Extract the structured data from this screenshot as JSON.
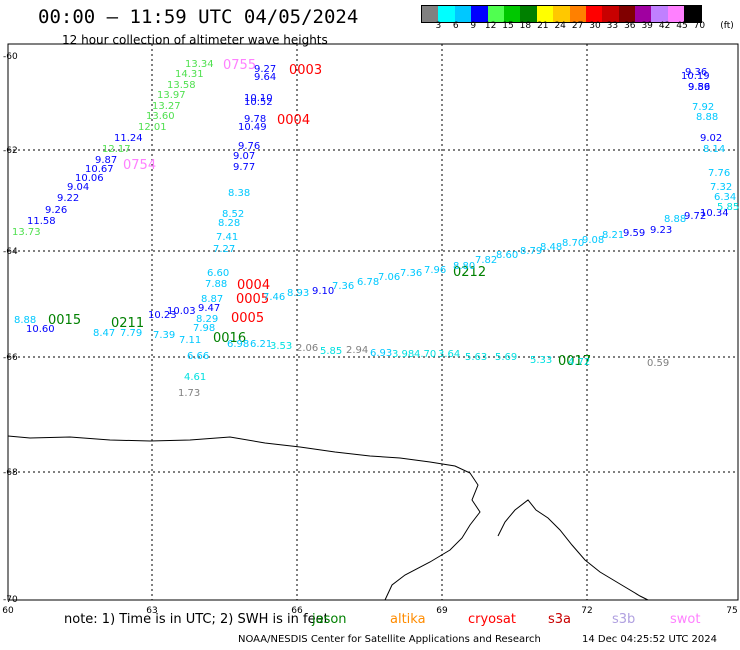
{
  "header": {
    "title": "00:00 – 11:59 UTC 04/05/2024",
    "subtitle": "12 hour collection of altimeter wave heights"
  },
  "legend": {
    "unit": "(ft)",
    "colors": [
      "#808080",
      "#00ffff",
      "#00c8ff",
      "#0000ff",
      "#50ff50",
      "#00c800",
      "#008000",
      "#ffff00",
      "#ffc800",
      "#ff8000",
      "#ff0000",
      "#c80000",
      "#800000",
      "#a000a0",
      "#c080ff",
      "#ff80ff",
      "#000000"
    ],
    "labels": [
      "3",
      "6",
      "9",
      "12",
      "15",
      "18",
      "21",
      "24",
      "27",
      "30",
      "33",
      "36",
      "39",
      "42",
      "45",
      "70"
    ]
  },
  "axes": {
    "lon_labels": [
      "60",
      "63",
      "66",
      "69",
      "72",
      "75"
    ],
    "lat_labels": [
      "-60",
      "-62",
      "-64",
      "-66",
      "-68",
      "-70"
    ]
  },
  "footer": {
    "note": "note:  1) Time is in UTC;  2) SWH is in feet",
    "sources": [
      {
        "name": "jason",
        "color": "#008000"
      },
      {
        "name": "altika",
        "color": "#ff8c00"
      },
      {
        "name": "cryosat",
        "color": "#ff0000"
      },
      {
        "name": "s3a",
        "color": "#c80000"
      },
      {
        "name": "s3b",
        "color": "#b0a0e0"
      },
      {
        "name": "swot",
        "color": "#ff80ff"
      }
    ],
    "credit": "NOAA/NESDIS Center for Satellite Applications and Research",
    "timestamp": "14 Dec 04:25:52 UTC 2024"
  },
  "map_labels": {
    "time": [
      {
        "text": "0755",
        "color": "#ff80ff"
      },
      {
        "text": "0003",
        "color": "#ff0000"
      },
      {
        "text": "0754",
        "color": "#ff80ff"
      },
      {
        "text": "0004",
        "color": "#ff0000"
      },
      {
        "text": "0004",
        "color": "#ff0000"
      },
      {
        "text": "0005",
        "color": "#ff0000"
      },
      {
        "text": "0005",
        "color": "#ff0000"
      },
      {
        "text": "0015",
        "color": "#008000"
      },
      {
        "text": "0211",
        "color": "#008000"
      },
      {
        "text": "0016",
        "color": "#008000"
      },
      {
        "text": "0212",
        "color": "#008000"
      },
      {
        "text": "0017",
        "color": "#008000"
      }
    ],
    "wave_heights": [
      {
        "text": "13.34",
        "color": "#50e050"
      },
      {
        "text": "14.31",
        "color": "#50e050"
      },
      {
        "text": "13.58",
        "color": "#50e050"
      },
      {
        "text": "13.97",
        "color": "#50e050"
      },
      {
        "text": "13.27",
        "color": "#50e050"
      },
      {
        "text": "13.60",
        "color": "#50e050"
      },
      {
        "text": "12.01",
        "color": "#50e050"
      },
      {
        "text": "11.24",
        "color": "#0000ff"
      },
      {
        "text": "12.17",
        "color": "#50e050"
      },
      {
        "text": "9.87",
        "color": "#0000ff"
      },
      {
        "text": "10.67",
        "color": "#0000ff"
      },
      {
        "text": "10.06",
        "color": "#0000ff"
      },
      {
        "text": "9.04",
        "color": "#0000ff"
      },
      {
        "text": "9.22",
        "color": "#0000ff"
      },
      {
        "text": "9.26",
        "color": "#0000ff"
      },
      {
        "text": "11.58",
        "color": "#0000ff"
      },
      {
        "text": "13.73",
        "color": "#50e050"
      },
      {
        "text": "9.27",
        "color": "#0000ff"
      },
      {
        "text": "9.64",
        "color": "#0000ff"
      },
      {
        "text": "10.10",
        "color": "#0000ff"
      },
      {
        "text": "10.52",
        "color": "#0000ff"
      },
      {
        "text": "9.78",
        "color": "#0000ff"
      },
      {
        "text": "10.49",
        "color": "#0000ff"
      },
      {
        "text": "9.76",
        "color": "#0000ff"
      },
      {
        "text": "9.07",
        "color": "#0000ff"
      },
      {
        "text": "9.77",
        "color": "#0000ff"
      },
      {
        "text": "8.38",
        "color": "#00c8ff"
      },
      {
        "text": "8.52",
        "color": "#00c8ff"
      },
      {
        "text": "8.28",
        "color": "#00c8ff"
      },
      {
        "text": "7.41",
        "color": "#00c8ff"
      },
      {
        "text": "7.27",
        "color": "#00c8ff"
      },
      {
        "text": "6.60",
        "color": "#00c8ff"
      },
      {
        "text": "7.88",
        "color": "#00c8ff"
      },
      {
        "text": "8.87",
        "color": "#00c8ff"
      },
      {
        "text": "9.47",
        "color": "#0000ff"
      },
      {
        "text": "10.03",
        "color": "#0000ff"
      },
      {
        "text": "10.23",
        "color": "#0000ff"
      },
      {
        "text": "8.29",
        "color": "#00c8ff"
      },
      {
        "text": "7.98",
        "color": "#00c8ff"
      },
      {
        "text": "6.66",
        "color": "#00c8ff"
      },
      {
        "text": "4.61",
        "color": "#00e0e0"
      },
      {
        "text": "1.73",
        "color": "#808080"
      },
      {
        "text": "8.88",
        "color": "#00c8ff"
      },
      {
        "text": "10.60",
        "color": "#0000ff"
      },
      {
        "text": "8.47",
        "color": "#00c8ff"
      },
      {
        "text": "7.79",
        "color": "#00c8ff"
      },
      {
        "text": "7.39",
        "color": "#00c8ff"
      },
      {
        "text": "7.11",
        "color": "#00c8ff"
      },
      {
        "text": "6.98",
        "color": "#00c8ff"
      },
      {
        "text": "6.21",
        "color": "#00c8ff"
      },
      {
        "text": "3.53",
        "color": "#00e0e0"
      },
      {
        "text": "2.06",
        "color": "#808080"
      },
      {
        "text": "5.85",
        "color": "#00e0e0"
      },
      {
        "text": "2.94",
        "color": "#808080"
      },
      {
        "text": "6.93",
        "color": "#00c8ff"
      },
      {
        "text": "3.98",
        "color": "#00e0e0"
      },
      {
        "text": "4.70",
        "color": "#00e0e0"
      },
      {
        "text": "3.64",
        "color": "#00e0e0"
      },
      {
        "text": "5.63",
        "color": "#00e0e0"
      },
      {
        "text": "5.69",
        "color": "#00e0e0"
      },
      {
        "text": "5.33",
        "color": "#00e0e0"
      },
      {
        "text": "4.72",
        "color": "#00e0e0"
      },
      {
        "text": "0.59",
        "color": "#808080"
      },
      {
        "text": "7.46",
        "color": "#00c8ff"
      },
      {
        "text": "8.93",
        "color": "#00c8ff"
      },
      {
        "text": "9.10",
        "color": "#0000ff"
      },
      {
        "text": "7.36",
        "color": "#00c8ff"
      },
      {
        "text": "6.78",
        "color": "#00c8ff"
      },
      {
        "text": "7.06",
        "color": "#00c8ff"
      },
      {
        "text": "7.36",
        "color": "#00c8ff"
      },
      {
        "text": "7.96",
        "color": "#00c8ff"
      },
      {
        "text": "8.80",
        "color": "#00c8ff"
      },
      {
        "text": "7.82",
        "color": "#00c8ff"
      },
      {
        "text": "8.60",
        "color": "#00c8ff"
      },
      {
        "text": "8.79",
        "color": "#00c8ff"
      },
      {
        "text": "8.48",
        "color": "#00c8ff"
      },
      {
        "text": "8.70",
        "color": "#00c8ff"
      },
      {
        "text": "9.08",
        "color": "#00c8ff"
      },
      {
        "text": "8.21",
        "color": "#00c8ff"
      },
      {
        "text": "9.59",
        "color": "#0000ff"
      },
      {
        "text": "9.23",
        "color": "#0000ff"
      },
      {
        "text": "8.88",
        "color": "#00c8ff"
      },
      {
        "text": "9.72",
        "color": "#0000ff"
      },
      {
        "text": "10.34",
        "color": "#0000ff"
      },
      {
        "text": "9.36",
        "color": "#0000ff"
      },
      {
        "text": "10.19",
        "color": "#0000ff"
      },
      {
        "text": "9.56",
        "color": "#0000ff"
      },
      {
        "text": "9.89",
        "color": "#0000ff"
      },
      {
        "text": "7.92",
        "color": "#00c8ff"
      },
      {
        "text": "8.88",
        "color": "#00c8ff"
      },
      {
        "text": "9.02",
        "color": "#0000ff"
      },
      {
        "text": "8.14",
        "color": "#00c8ff"
      },
      {
        "text": "7.76",
        "color": "#00c8ff"
      },
      {
        "text": "7.32",
        "color": "#00c8ff"
      },
      {
        "text": "6.34",
        "color": "#00c8ff"
      },
      {
        "text": "5.85",
        "color": "#00e0e0"
      }
    ]
  }
}
